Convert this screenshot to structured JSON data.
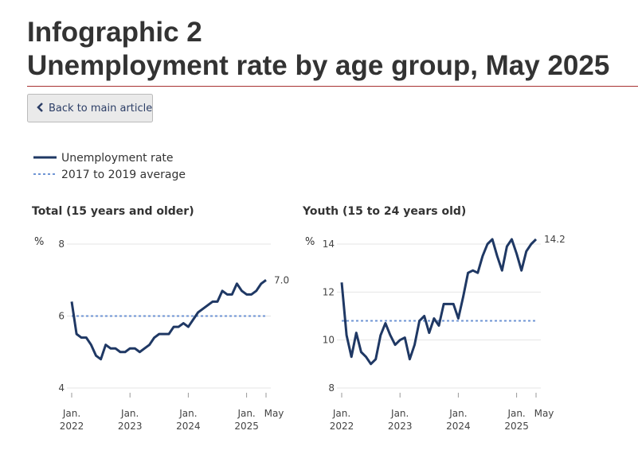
{
  "header": {
    "title_line1": "Infographic 2",
    "title_line2": "Unemployment rate by age group, May 2025"
  },
  "button": {
    "label": "Back to main article"
  },
  "chart_data": [
    {
      "type": "line",
      "title": "Total (15 years and older)",
      "ylabel": "%",
      "x": [
        "2022-01",
        "2022-02",
        "2022-03",
        "2022-04",
        "2022-05",
        "2022-06",
        "2022-07",
        "2022-08",
        "2022-09",
        "2022-10",
        "2022-11",
        "2022-12",
        "2023-01",
        "2023-02",
        "2023-03",
        "2023-04",
        "2023-05",
        "2023-06",
        "2023-07",
        "2023-08",
        "2023-09",
        "2023-10",
        "2023-11",
        "2023-12",
        "2024-01",
        "2024-02",
        "2024-03",
        "2024-04",
        "2024-05",
        "2024-06",
        "2024-07",
        "2024-08",
        "2024-09",
        "2024-10",
        "2024-11",
        "2024-12",
        "2025-01",
        "2025-02",
        "2025-03",
        "2025-04",
        "2025-05"
      ],
      "series": [
        {
          "name": "Unemployment rate",
          "color": "#1f3864",
          "values": [
            6.4,
            5.5,
            5.4,
            5.4,
            5.2,
            4.9,
            4.8,
            5.2,
            5.1,
            5.1,
            5.0,
            5.0,
            5.1,
            5.1,
            5.0,
            5.1,
            5.2,
            5.4,
            5.5,
            5.5,
            5.5,
            5.7,
            5.7,
            5.8,
            5.7,
            5.9,
            6.1,
            6.2,
            6.3,
            6.4,
            6.4,
            6.7,
            6.6,
            6.6,
            6.9,
            6.7,
            6.6,
            6.6,
            6.7,
            6.9,
            7.0
          ],
          "value_labels": [
            null,
            null,
            null,
            null,
            null,
            null,
            null,
            null,
            null,
            null,
            null,
            null,
            null,
            null,
            null,
            null,
            null,
            null,
            null,
            null,
            null,
            null,
            null,
            null,
            null,
            null,
            null,
            null,
            null,
            null,
            null,
            null,
            null,
            null,
            null,
            null,
            null,
            null,
            null,
            null,
            "7.0"
          ]
        }
      ],
      "reference_line": {
        "name": "2017 to 2019 average",
        "value": 6.0,
        "color": "#6f95d4"
      },
      "xlim": [
        "2022-01",
        "2025-05"
      ],
      "xticks": [
        {
          "value": "2022-01",
          "label": [
            "Jan.",
            "2022"
          ]
        },
        {
          "value": "2023-01",
          "label": [
            "Jan.",
            "2023"
          ]
        },
        {
          "value": "2024-01",
          "label": [
            "Jan.",
            "2024"
          ]
        },
        {
          "value": "2025-01",
          "label": [
            "Jan.",
            "2025"
          ]
        },
        {
          "value": "2025-05",
          "label": [
            "May"
          ]
        }
      ],
      "ylim": [
        4,
        8
      ],
      "yticks": [
        4,
        6,
        8
      ],
      "grid": true
    },
    {
      "type": "line",
      "title": "Youth (15 to 24 years old)",
      "ylabel": "%",
      "x": [
        "2022-01",
        "2022-02",
        "2022-03",
        "2022-04",
        "2022-05",
        "2022-06",
        "2022-07",
        "2022-08",
        "2022-09",
        "2022-10",
        "2022-11",
        "2022-12",
        "2023-01",
        "2023-02",
        "2023-03",
        "2023-04",
        "2023-05",
        "2023-06",
        "2023-07",
        "2023-08",
        "2023-09",
        "2023-10",
        "2023-11",
        "2023-12",
        "2024-01",
        "2024-02",
        "2024-03",
        "2024-04",
        "2024-05",
        "2024-06",
        "2024-07",
        "2024-08",
        "2024-09",
        "2024-10",
        "2024-11",
        "2024-12",
        "2025-01",
        "2025-02",
        "2025-03",
        "2025-04",
        "2025-05"
      ],
      "series": [
        {
          "name": "Unemployment rate",
          "color": "#1f3864",
          "values": [
            12.4,
            10.2,
            9.3,
            10.3,
            9.5,
            9.3,
            9.0,
            9.2,
            10.2,
            10.7,
            10.2,
            9.8,
            10.0,
            10.1,
            9.2,
            9.8,
            10.8,
            11.0,
            10.3,
            10.9,
            10.6,
            11.5,
            11.5,
            11.5,
            10.9,
            11.8,
            12.8,
            12.9,
            12.8,
            13.5,
            14.0,
            14.2,
            13.5,
            12.9,
            13.9,
            14.2,
            13.6,
            12.9,
            13.7,
            14.0,
            14.2
          ],
          "value_labels": [
            null,
            null,
            null,
            null,
            null,
            null,
            null,
            null,
            null,
            null,
            null,
            null,
            null,
            null,
            null,
            null,
            null,
            null,
            null,
            null,
            null,
            null,
            null,
            null,
            null,
            null,
            null,
            null,
            null,
            null,
            null,
            null,
            null,
            null,
            null,
            null,
            null,
            null,
            null,
            null,
            "14.2"
          ]
        }
      ],
      "reference_line": {
        "name": "2017 to 2019 average",
        "value": 10.8,
        "color": "#6f95d4"
      },
      "xlim": [
        "2022-01",
        "2025-05"
      ],
      "xticks": [
        {
          "value": "2022-01",
          "label": [
            "Jan.",
            "2022"
          ]
        },
        {
          "value": "2023-01",
          "label": [
            "Jan.",
            "2023"
          ]
        },
        {
          "value": "2024-01",
          "label": [
            "Jan.",
            "2024"
          ]
        },
        {
          "value": "2025-01",
          "label": [
            "Jan.",
            "2025"
          ]
        },
        {
          "value": "2025-05",
          "label": [
            "May"
          ]
        }
      ],
      "ylim": [
        8,
        14
      ],
      "yticks": [
        8,
        10,
        12,
        14
      ],
      "grid": true
    }
  ]
}
